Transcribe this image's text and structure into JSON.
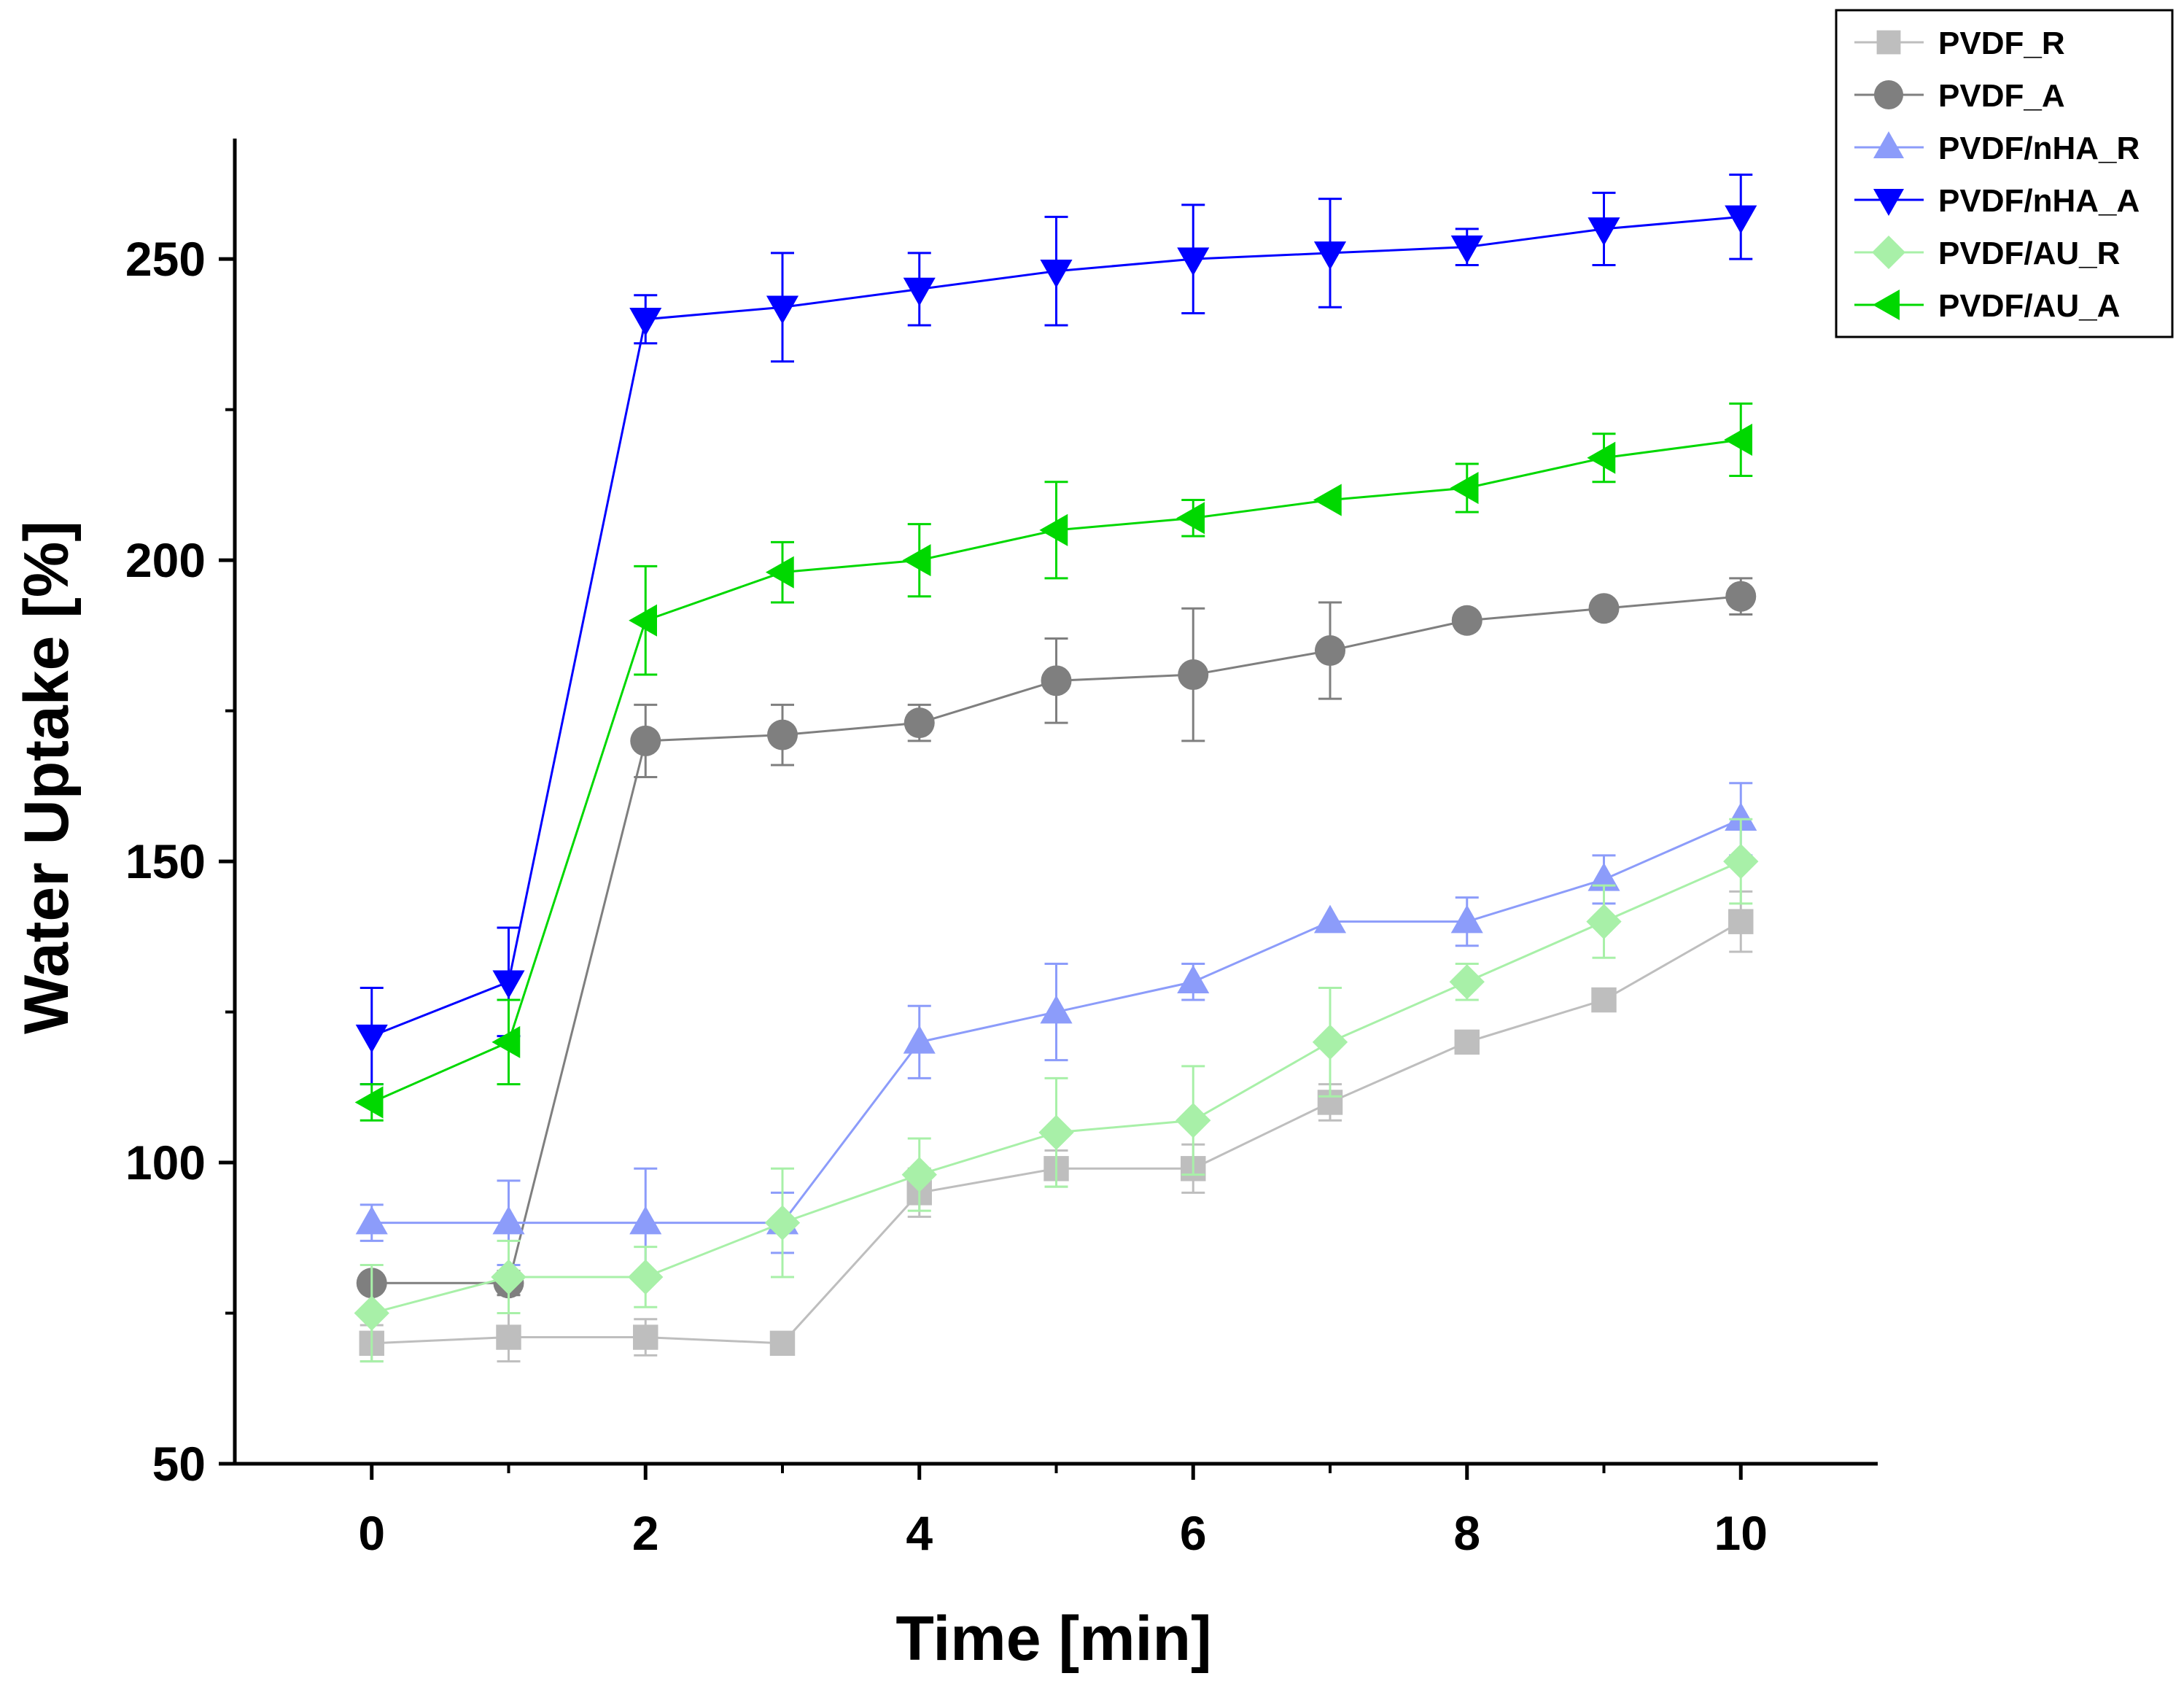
{
  "chart_data": {
    "type": "line",
    "title": "",
    "xlabel": "Time [min]",
    "ylabel": "Water Uptake [%]",
    "xlim": [
      -1,
      11
    ],
    "ylim": [
      50,
      270
    ],
    "xticks": [
      0,
      2,
      4,
      6,
      8,
      10
    ],
    "xtick_labels": [
      "0",
      "2",
      "4",
      "6",
      "8",
      "10"
    ],
    "yticks": [
      50,
      100,
      150,
      200,
      250
    ],
    "ytick_labels": [
      "50",
      "100",
      "150",
      "200",
      "250"
    ],
    "grid": false,
    "legend_position": "top-right",
    "x": [
      0,
      1,
      2,
      3,
      4,
      5,
      6,
      7,
      8,
      9,
      10
    ],
    "series": [
      {
        "name": "PVDF_R",
        "color": "#BEBEBE",
        "marker": "square",
        "values": [
          70,
          71,
          71,
          70,
          95,
          99,
          99,
          110,
          120,
          127,
          140
        ],
        "errors": [
          3,
          4,
          3,
          0,
          4,
          3,
          4,
          3,
          0,
          0,
          5
        ]
      },
      {
        "name": "PVDF_A",
        "color": "#7F7F7F",
        "marker": "circle",
        "values": [
          80,
          80,
          170,
          171,
          173,
          180,
          181,
          185,
          190,
          192,
          194
        ],
        "errors": [
          0,
          2,
          6,
          5,
          3,
          7,
          11,
          8,
          0,
          0,
          3
        ]
      },
      {
        "name": "PVDF/nHA_R",
        "color": "#8C9CFA",
        "marker": "triangle-up",
        "values": [
          90,
          90,
          90,
          90,
          120,
          125,
          130,
          140,
          140,
          147,
          157
        ],
        "errors": [
          3,
          7,
          9,
          5,
          6,
          8,
          3,
          0,
          4,
          4,
          6
        ]
      },
      {
        "name": "PVDF/nHA_A",
        "color": "#0000FF",
        "marker": "triangle-down",
        "values": [
          121,
          130,
          240,
          242,
          245,
          248,
          250,
          251,
          252,
          255,
          257
        ],
        "errors": [
          8,
          9,
          4,
          9,
          6,
          9,
          9,
          9,
          3,
          6,
          7
        ]
      },
      {
        "name": "PVDF/AU_R",
        "color": "#A8F0A8",
        "marker": "diamond",
        "values": [
          75,
          81,
          81,
          90,
          98,
          105,
          107,
          120,
          130,
          140,
          150
        ],
        "errors": [
          8,
          6,
          5,
          9,
          6,
          9,
          9,
          9,
          3,
          6,
          7
        ]
      },
      {
        "name": "PVDF/AU_A",
        "color": "#00D800",
        "marker": "triangle-left",
        "values": [
          110,
          120,
          190,
          198,
          200,
          205,
          207,
          210,
          212,
          217,
          220
        ],
        "errors": [
          3,
          7,
          9,
          5,
          6,
          8,
          3,
          0,
          4,
          4,
          6
        ]
      }
    ]
  }
}
